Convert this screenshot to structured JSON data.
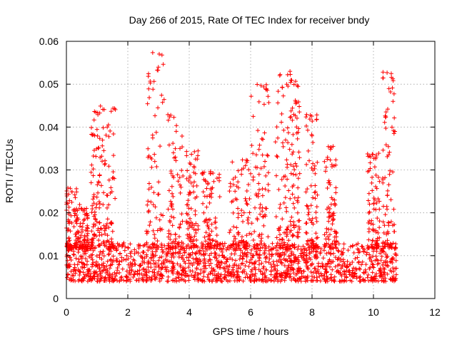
{
  "chart_data": {
    "type": "scatter",
    "title": "Day 266 of 2015, Rate Of TEC Index for receiver bndy",
    "xlabel": "GPS time / hours",
    "ylabel": "ROTI / TECUs",
    "xlim": [
      0,
      12
    ],
    "ylim": [
      0,
      0.06
    ],
    "xticks": [
      0,
      2,
      4,
      6,
      8,
      10,
      12
    ],
    "yticks": [
      0,
      0.01,
      0.02,
      0.03,
      0.04,
      0.05,
      0.06
    ],
    "xtick_labels": [
      "0",
      "2",
      "4",
      "6",
      "8",
      "10",
      "12"
    ],
    "ytick_labels": [
      "0",
      "0.01",
      "0.02",
      "0.03",
      "0.04",
      "0.05",
      "0.06"
    ],
    "grid": true,
    "grid_style": "dotted",
    "marker": "+",
    "series": [
      {
        "name": "ROTI",
        "color": "#ff0000",
        "x_range_hours": [
          0.0,
          10.75
        ],
        "baseline_range": [
          0.004,
          0.013
        ],
        "peak_episodes": [
          {
            "x": [
              0.0,
              0.35
            ],
            "max": 0.026
          },
          {
            "x": [
              0.35,
              0.7
            ],
            "max": 0.022
          },
          {
            "x": [
              0.8,
              1.1
            ],
            "max": 0.044
          },
          {
            "x": [
              1.1,
              1.6
            ],
            "max": 0.045
          },
          {
            "x": [
              2.6,
              3.2
            ],
            "max": 0.058
          },
          {
            "x": [
              3.3,
              3.8
            ],
            "max": 0.043
          },
          {
            "x": [
              3.9,
              4.3
            ],
            "max": 0.035
          },
          {
            "x": [
              4.4,
              5.0
            ],
            "max": 0.03
          },
          {
            "x": [
              5.3,
              6.0
            ],
            "max": 0.033
          },
          {
            "x": [
              6.0,
              6.6
            ],
            "max": 0.05
          },
          {
            "x": [
              6.8,
              7.3
            ],
            "max": 0.053
          },
          {
            "x": [
              7.3,
              7.6
            ],
            "max": 0.051
          },
          {
            "x": [
              7.8,
              8.2
            ],
            "max": 0.043
          },
          {
            "x": [
              8.4,
              8.8
            ],
            "max": 0.036
          },
          {
            "x": [
              9.8,
              10.2
            ],
            "max": 0.034
          },
          {
            "x": [
              10.3,
              10.7
            ],
            "max": 0.053
          }
        ]
      }
    ]
  }
}
